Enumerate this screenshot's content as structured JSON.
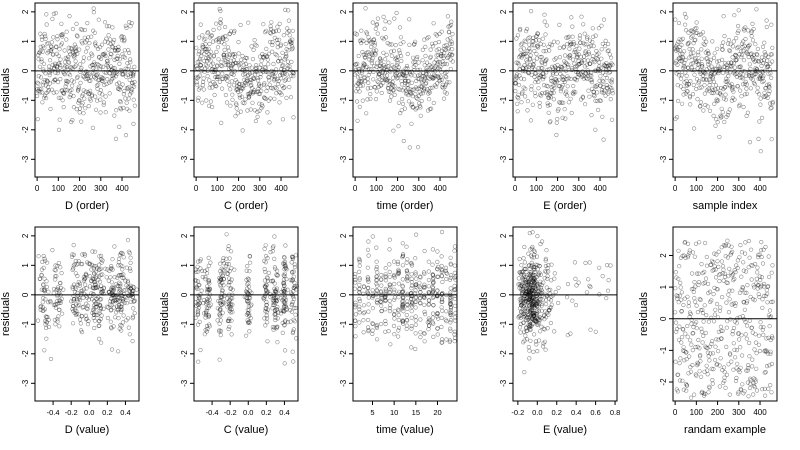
{
  "figure": {
    "ylabel": "residuals"
  },
  "chart_data": [
    {
      "type": "scatter",
      "xlabel": "D (order)",
      "ylabel": "residuals",
      "xlim": [
        -10,
        480
      ],
      "ylim": [
        -3.6,
        2.3
      ],
      "xticks": [
        0,
        100,
        200,
        300,
        400
      ],
      "yticks": [
        -3,
        -2,
        -1,
        0,
        1,
        2
      ],
      "hline": 0,
      "xdist": "order",
      "pattern": "mixed",
      "n": 460,
      "seed": 11
    },
    {
      "type": "scatter",
      "xlabel": "C (order)",
      "ylabel": "residuals",
      "xlim": [
        -10,
        480
      ],
      "ylim": [
        -3.6,
        2.3
      ],
      "xticks": [
        0,
        100,
        200,
        300,
        400
      ],
      "yticks": [
        -3,
        -2,
        -1,
        0,
        1,
        2
      ],
      "hline": 0,
      "xdist": "order",
      "pattern": "wave",
      "n": 460,
      "seed": 23
    },
    {
      "type": "scatter",
      "xlabel": "time (order)",
      "ylabel": "residuals",
      "xlim": [
        -10,
        480
      ],
      "ylim": [
        -3.6,
        2.3
      ],
      "xticks": [
        0,
        100,
        200,
        300,
        400
      ],
      "yticks": [
        -3,
        -2,
        -1,
        0,
        1,
        2
      ],
      "hline": 0,
      "xdist": "order",
      "pattern": "wave",
      "n": 460,
      "seed": 37
    },
    {
      "type": "scatter",
      "xlabel": "E (order)",
      "ylabel": "residuals",
      "xlim": [
        -10,
        480
      ],
      "ylim": [
        -3.6,
        2.3
      ],
      "xticks": [
        0,
        100,
        200,
        300,
        400
      ],
      "yticks": [
        -3,
        -2,
        -1,
        0,
        1,
        2
      ],
      "hline": 0,
      "xdist": "order",
      "pattern": "mixed",
      "n": 460,
      "seed": 41
    },
    {
      "type": "scatter",
      "xlabel": "sample index",
      "ylabel": "residuals",
      "xlim": [
        -10,
        480
      ],
      "ylim": [
        -3.6,
        2.3
      ],
      "xticks": [
        0,
        100,
        200,
        300,
        400
      ],
      "yticks": [
        -3,
        -2,
        -1,
        0,
        1,
        2
      ],
      "hline": 0,
      "xdist": "order",
      "pattern": "mixed",
      "n": 460,
      "seed": 53
    },
    {
      "type": "scatter",
      "xlabel": "D (value)",
      "ylabel": "residuals",
      "xlim": [
        -0.6,
        0.55
      ],
      "ylim": [
        -3.6,
        2.3
      ],
      "xticks": [
        -0.4,
        -0.2,
        0.0,
        0.2,
        0.4
      ],
      "xtick_labels": [
        "-0.4",
        "-0.2",
        "0.0",
        "0.2",
        "0.4"
      ],
      "yticks": [
        -3,
        -2,
        -1,
        0,
        1,
        2
      ],
      "hline": 0,
      "xdist": "clusters",
      "centers": [
        -0.5,
        -0.35,
        -0.15,
        -0.05,
        0.05,
        0.12,
        0.25,
        0.35,
        0.45
      ],
      "spread": 0.03,
      "n": 460,
      "seed": 61
    },
    {
      "type": "scatter",
      "xlabel": "C (value)",
      "ylabel": "residuals",
      "xlim": [
        -0.6,
        0.55
      ],
      "ylim": [
        -3.6,
        2.3
      ],
      "xticks": [
        -0.4,
        -0.2,
        0.0,
        0.2,
        0.4
      ],
      "xtick_labels": [
        "-0.4",
        "-0.2",
        "0.0",
        "0.2",
        "0.4"
      ],
      "yticks": [
        -3,
        -2,
        -1,
        0,
        1,
        2
      ],
      "hline": 0,
      "xdist": "clusters",
      "centers": [
        -0.55,
        -0.45,
        -0.3,
        -0.2,
        0.0,
        0.2,
        0.3,
        0.4,
        0.5
      ],
      "spread": 0.02,
      "n": 460,
      "seed": 71
    },
    {
      "type": "scatter",
      "xlabel": "time (value)",
      "ylabel": "residuals",
      "xlim": [
        0.5,
        24.5
      ],
      "ylim": [
        -3.6,
        2.3
      ],
      "xticks": [
        5,
        10,
        15,
        20
      ],
      "xtick_labels": [
        "5",
        "10",
        "15",
        "20"
      ],
      "yticks": [
        -3,
        -2,
        -1,
        0,
        1,
        2
      ],
      "hline": 0,
      "xdist": "discrete",
      "values": [
        1,
        2,
        3,
        4,
        5,
        6,
        7,
        8,
        9,
        10,
        11,
        12,
        13,
        14,
        15,
        16,
        17,
        18,
        19,
        20,
        21,
        22,
        23,
        24
      ],
      "n": 460,
      "seed": 83
    },
    {
      "type": "scatter",
      "xlabel": "E (value)",
      "ylabel": "residuals",
      "xlim": [
        -0.25,
        0.82
      ],
      "ylim": [
        -3.6,
        2.3
      ],
      "xticks": [
        -0.2,
        0.0,
        0.2,
        0.4,
        0.6,
        0.8
      ],
      "xtick_labels": [
        "-0.2",
        "0.0",
        "0.2",
        "0.4",
        "0.6",
        "0.8"
      ],
      "yticks": [
        -3,
        -2,
        -1,
        0,
        1,
        2
      ],
      "hline": 0,
      "xdist": "skewed",
      "n": 460,
      "seed": 97
    },
    {
      "type": "scatter",
      "xlabel": "randam example",
      "ylabel": "residuals",
      "xlim": [
        -10,
        480
      ],
      "ylim": [
        -2.6,
        2.9
      ],
      "xticks": [
        0,
        100,
        200,
        300,
        400
      ],
      "yticks": [
        -2,
        -1,
        0,
        1,
        2
      ],
      "hline": 0,
      "xdist": "order",
      "pattern": "random",
      "n": 460,
      "seed": 101
    }
  ]
}
